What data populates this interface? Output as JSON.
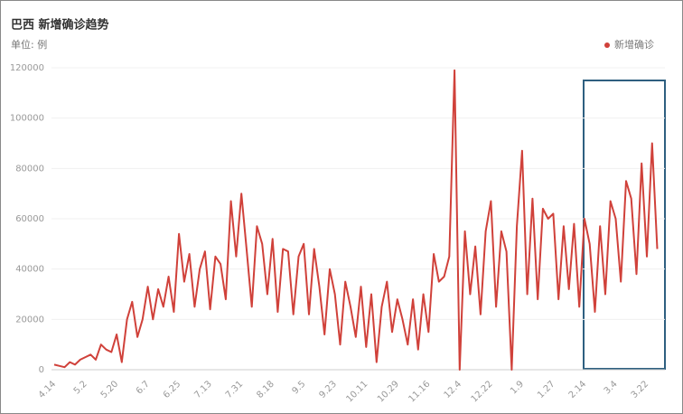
{
  "chart_data": {
    "type": "line",
    "title": "巴西 新增确诊趋势",
    "subtitle": "单位: 例",
    "categories": [
      "4.14",
      null,
      null,
      null,
      null,
      null,
      "5.2",
      null,
      null,
      null,
      null,
      null,
      "5.20",
      null,
      null,
      null,
      null,
      null,
      "6.7",
      null,
      null,
      null,
      null,
      null,
      "6.25",
      null,
      null,
      null,
      null,
      null,
      "7.13",
      null,
      null,
      null,
      null,
      null,
      "7.31",
      null,
      null,
      null,
      null,
      null,
      "8.18",
      null,
      null,
      null,
      null,
      null,
      "9.5",
      null,
      null,
      null,
      null,
      null,
      "9.23",
      null,
      null,
      null,
      null,
      null,
      "10.11",
      null,
      null,
      null,
      null,
      null,
      "10.29",
      null,
      null,
      null,
      null,
      null,
      "11.16",
      null,
      null,
      null,
      null,
      null,
      "12.4",
      null,
      null,
      null,
      null,
      null,
      "12.22",
      null,
      null,
      null,
      null,
      null,
      "1.9",
      null,
      null,
      null,
      null,
      null,
      "1.27",
      null,
      null,
      null,
      null,
      null,
      "2.14",
      null,
      null,
      null,
      null,
      null,
      "3.4",
      null,
      null,
      null,
      null,
      null,
      "3.22",
      null,
      null
    ],
    "series": [
      {
        "name": "新增确诊",
        "color": "#d0413a",
        "values": [
          2000,
          1500,
          1000,
          3000,
          2000,
          4000,
          5000,
          6000,
          4000,
          10000,
          8000,
          7000,
          14000,
          3000,
          20000,
          27000,
          13000,
          20000,
          33000,
          20000,
          32000,
          25000,
          37000,
          23000,
          54000,
          35000,
          46000,
          25000,
          40000,
          47000,
          24000,
          45000,
          42000,
          28000,
          67000,
          45000,
          70000,
          48000,
          25000,
          57000,
          50000,
          30000,
          52000,
          23000,
          48000,
          47000,
          22000,
          45000,
          50000,
          22000,
          48000,
          33000,
          14000,
          40000,
          30000,
          10000,
          35000,
          25000,
          13000,
          33000,
          9000,
          30000,
          3000,
          25000,
          35000,
          15000,
          28000,
          20000,
          10000,
          28000,
          8000,
          30000,
          15000,
          46000,
          35000,
          37000,
          45000,
          119000,
          0,
          55000,
          30000,
          49000,
          22000,
          55000,
          67000,
          25000,
          55000,
          47000,
          0,
          57000,
          87000,
          30000,
          68000,
          28000,
          64000,
          60000,
          62000,
          28000,
          57000,
          32000,
          58000,
          25000,
          60000,
          50000,
          23000,
          57000,
          30000,
          67000,
          60000,
          35000,
          75000,
          68000,
          38000,
          82000,
          45000,
          90000,
          48000
        ]
      }
    ],
    "ylim": [
      0,
      120000
    ],
    "yticks": [
      0,
      20000,
      40000,
      60000,
      80000,
      100000,
      120000
    ],
    "grid": true,
    "legend": "top-right"
  }
}
